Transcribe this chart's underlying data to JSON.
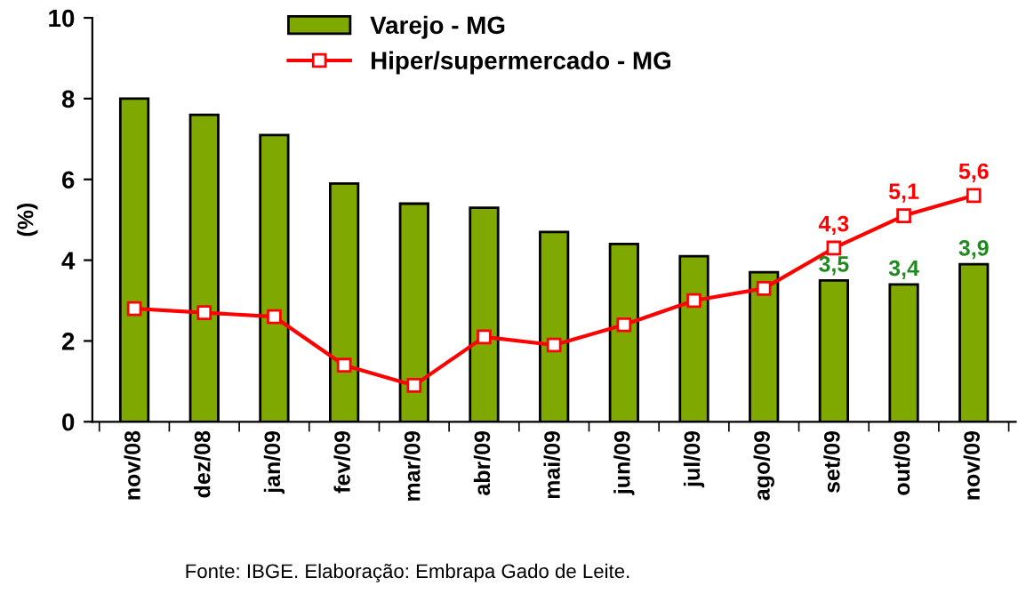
{
  "chart_data": {
    "type": "bar",
    "ylabel": "(%)",
    "categories": [
      "nov/08",
      "dez/08",
      "jan/09",
      "fev/09",
      "mar/09",
      "abr/09",
      "mai/09",
      "jun/09",
      "jul/09",
      "ago/09",
      "set/09",
      "out/09",
      "nov/09"
    ],
    "series": [
      {
        "name": "Varejo - MG",
        "color": "#7fa800",
        "values": [
          8.0,
          7.6,
          7.1,
          5.9,
          5.4,
          5.3,
          4.7,
          4.4,
          4.1,
          3.7,
          3.5,
          3.4,
          3.9
        ],
        "value_labels": [
          null,
          null,
          null,
          null,
          null,
          null,
          null,
          null,
          null,
          null,
          "3,5",
          "3,4",
          "3,9"
        ]
      },
      {
        "name": "Hiper/supermercado - MG",
        "type": "line",
        "color": "#ff0000",
        "marker": "square",
        "values": [
          2.8,
          2.7,
          2.6,
          1.4,
          0.9,
          2.1,
          1.9,
          2.4,
          3.0,
          3.3,
          4.3,
          5.1,
          5.6
        ],
        "value_labels": [
          null,
          null,
          null,
          null,
          null,
          null,
          null,
          null,
          null,
          null,
          "4,3",
          "5,1",
          "5,6"
        ]
      }
    ],
    "ylim": [
      0,
      10
    ],
    "yticks": [
      0,
      2,
      4,
      6,
      8,
      10
    ],
    "grid": false,
    "legend": "top",
    "annotations": [
      "Fonte: IBGE. Elaboração: Embrapa Gado de Leite."
    ]
  }
}
